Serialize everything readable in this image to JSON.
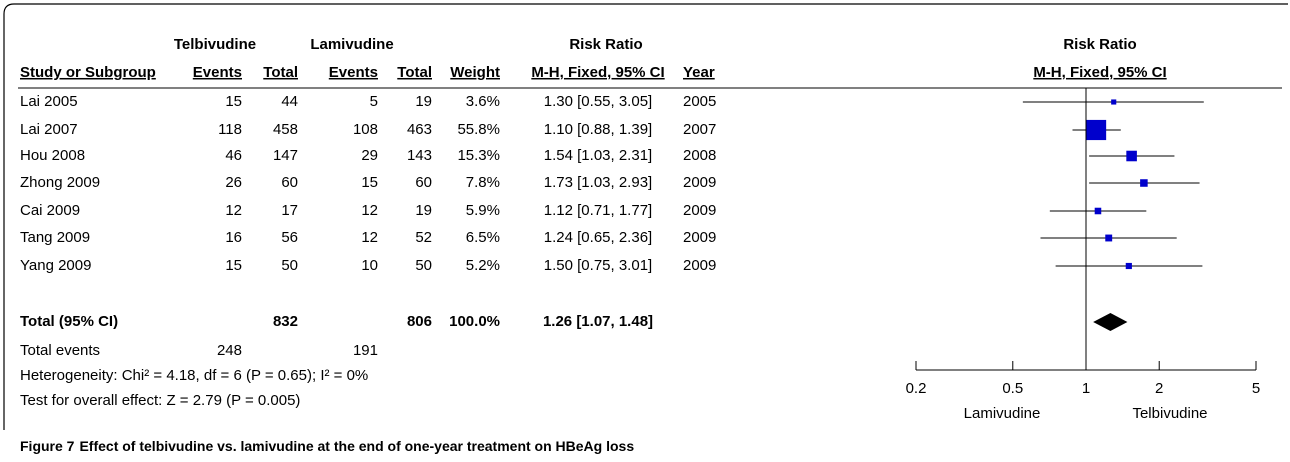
{
  "header": {
    "group1": "Telbivudine",
    "group2": "Lamivudine",
    "effect": "Risk Ratio",
    "plot_title": "Risk Ratio"
  },
  "columns": [
    "Study or Subgroup",
    "Events",
    "Total",
    "Events",
    "Total",
    "Weight",
    "M-H, Fixed, 95% CI",
    "Year"
  ],
  "plot_subtitle": "M-H, Fixed, 95% CI",
  "studies": [
    {
      "name": "Lai 2005",
      "events1": 15,
      "total1": 44,
      "events2": 5,
      "total2": 19,
      "weight": 3.6,
      "weight_label": "3.6%",
      "ci_label": "1.30 [0.55, 3.05]",
      "rr": 1.3,
      "lower": 0.55,
      "upper": 3.05,
      "year": "2005"
    },
    {
      "name": "Lai 2007",
      "events1": 118,
      "total1": 458,
      "events2": 108,
      "total2": 463,
      "weight": 55.8,
      "weight_label": "55.8%",
      "ci_label": "1.10 [0.88, 1.39]",
      "rr": 1.1,
      "lower": 0.88,
      "upper": 1.39,
      "year": "2007"
    },
    {
      "name": "Hou 2008",
      "events1": 46,
      "total1": 147,
      "events2": 29,
      "total2": 143,
      "weight": 15.3,
      "weight_label": "15.3%",
      "ci_label": "1.54 [1.03, 2.31]",
      "rr": 1.54,
      "lower": 1.03,
      "upper": 2.31,
      "year": "2008"
    },
    {
      "name": "Zhong 2009",
      "events1": 26,
      "total1": 60,
      "events2": 15,
      "total2": 60,
      "weight": 7.8,
      "weight_label": "7.8%",
      "ci_label": "1.73 [1.03, 2.93]",
      "rr": 1.73,
      "lower": 1.03,
      "upper": 2.93,
      "year": "2009"
    },
    {
      "name": "Cai 2009",
      "events1": 12,
      "total1": 17,
      "events2": 12,
      "total2": 19,
      "weight": 5.9,
      "weight_label": "5.9%",
      "ci_label": "1.12 [0.71, 1.77]",
      "rr": 1.12,
      "lower": 0.71,
      "upper": 1.77,
      "year": "2009"
    },
    {
      "name": "Tang 2009",
      "events1": 16,
      "total1": 56,
      "events2": 12,
      "total2": 52,
      "weight": 6.5,
      "weight_label": "6.5%",
      "ci_label": "1.24 [0.65, 2.36]",
      "rr": 1.24,
      "lower": 0.65,
      "upper": 2.36,
      "year": "2009"
    },
    {
      "name": "Yang 2009",
      "events1": 15,
      "total1": 50,
      "events2": 10,
      "total2": 50,
      "weight": 5.2,
      "weight_label": "5.2%",
      "ci_label": "1.50 [0.75, 3.01]",
      "rr": 1.5,
      "lower": 0.75,
      "upper": 3.01,
      "year": "2009"
    }
  ],
  "total": {
    "name": "Total (95% CI)",
    "total1": 832,
    "total2": 806,
    "weight_label": "100.0%",
    "ci_label": "1.26 [1.07, 1.48]",
    "rr": 1.26,
    "lower": 1.07,
    "upper": 1.48
  },
  "total_events": {
    "name": "Total events",
    "events1": 248,
    "events2": 191
  },
  "heterogeneity": "Heterogeneity: Chi² = 4.18, df = 6 (P = 0.65); I² = 0%",
  "overall_effect": "Test for overall effect: Z = 2.79 (P = 0.005)",
  "axis": {
    "log": true,
    "xlim": [
      0.2,
      5
    ],
    "xticks": [
      0.2,
      0.5,
      1,
      2,
      5
    ],
    "left_label": "Lamivudine",
    "right_label": "Telbivudine",
    "color": "#0000cc"
  },
  "caption": {
    "label": "Figure 7",
    "text": "Effect of telbivudine vs. lamivudine at the end of one-year treatment on HBeAg loss"
  }
}
